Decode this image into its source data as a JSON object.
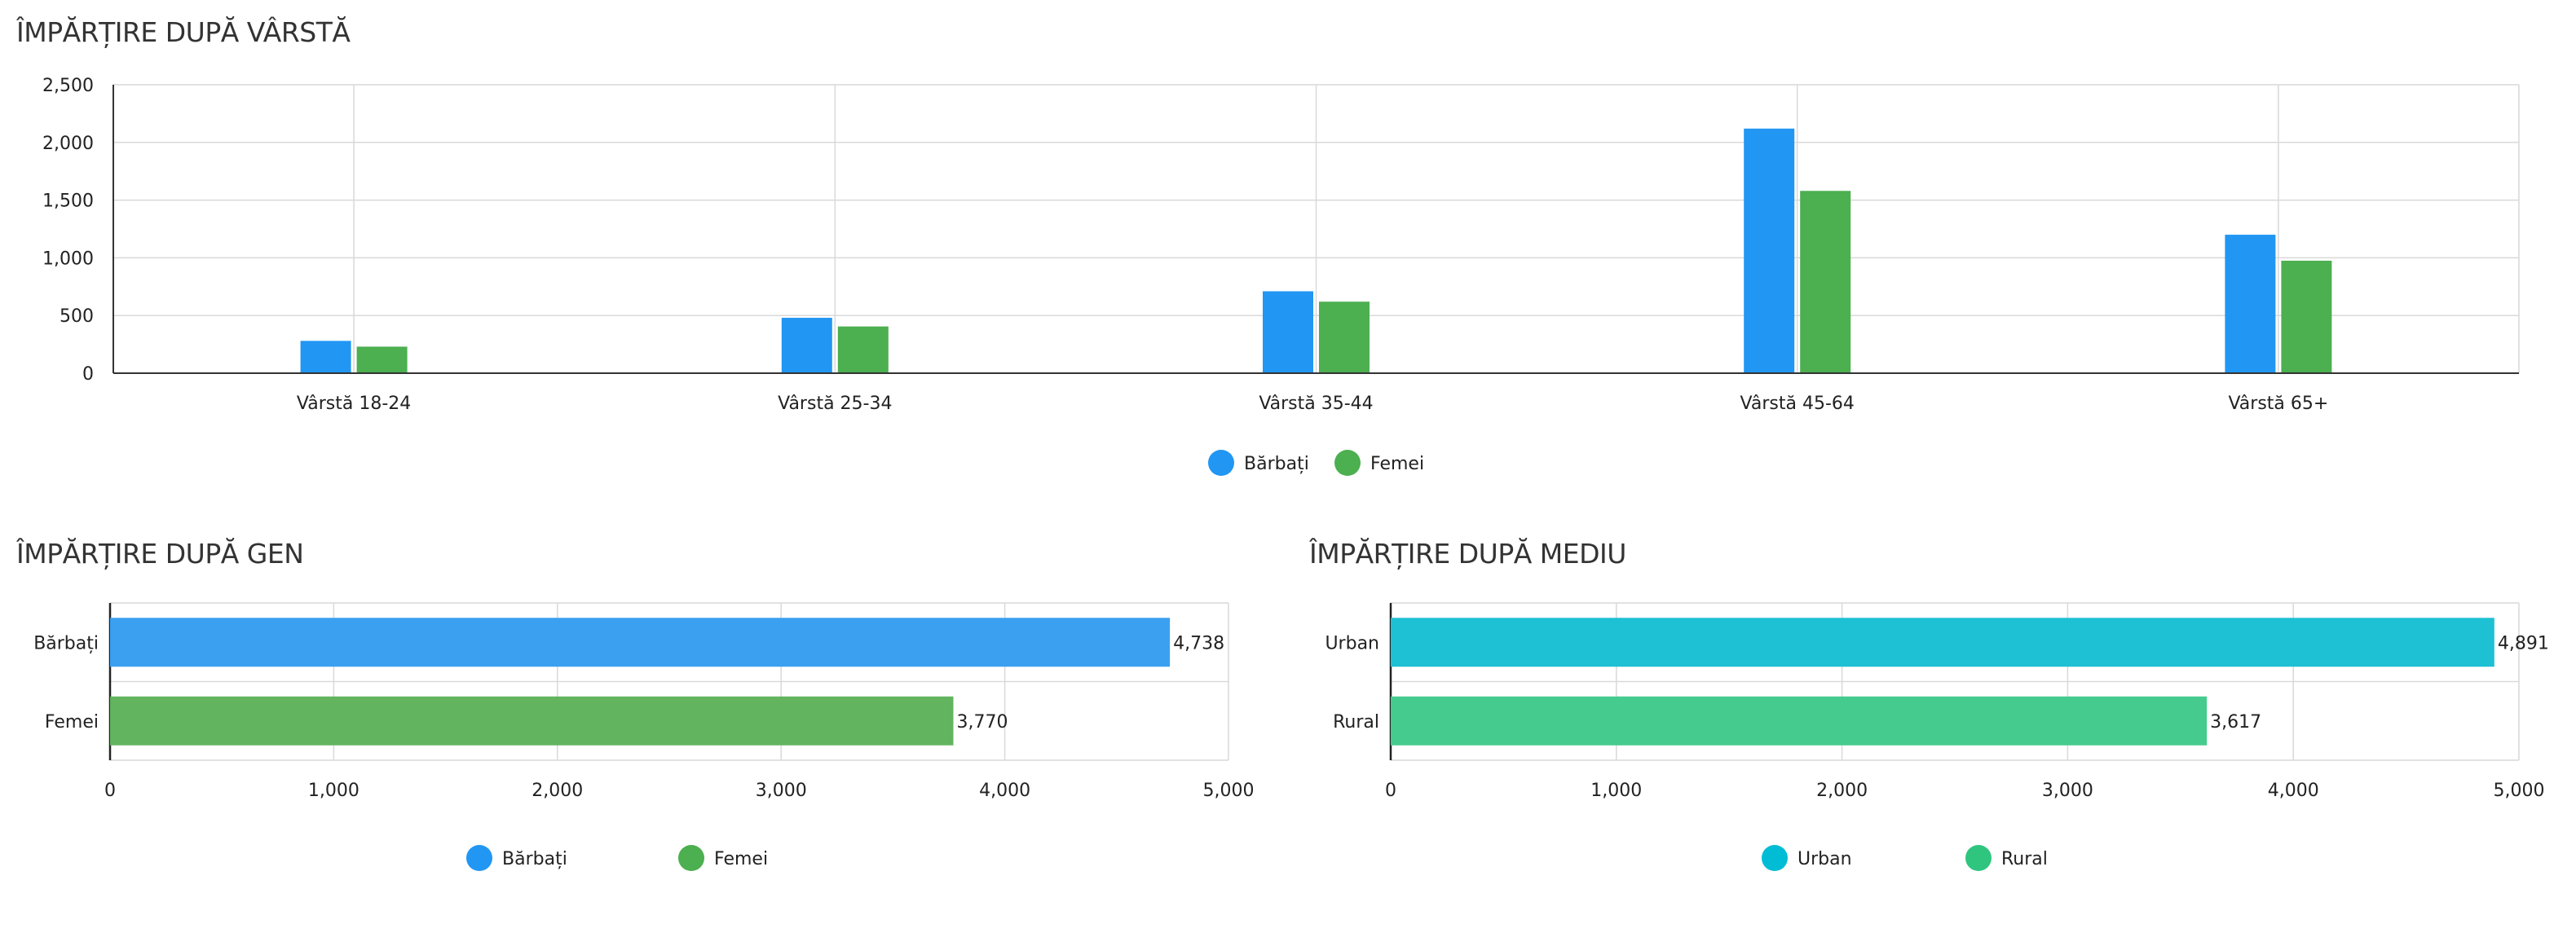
{
  "chart_data": [
    {
      "id": "age",
      "type": "bar",
      "title": "ÎMPĂRȚIRE DUPĂ VÂRSTĂ",
      "orientation": "vertical",
      "categories": [
        "Vârstă 18-24",
        "Vârstă 25-34",
        "Vârstă 35-44",
        "Vârstă 45-64",
        "Vârstă 65+"
      ],
      "series": [
        {
          "name": "Bărbați",
          "color": "#2196F3",
          "values": [
            280,
            480,
            710,
            2120,
            1200
          ]
        },
        {
          "name": "Femei",
          "color": "#4CAF50",
          "values": [
            230,
            405,
            620,
            1580,
            975
          ]
        }
      ],
      "ylim": [
        0,
        2500
      ],
      "yticks": [
        "0",
        "500",
        "1,000",
        "1,500",
        "2,000",
        "2,500"
      ],
      "grid": true,
      "legend": "bottom-center",
      "xlabel": "",
      "ylabel": ""
    },
    {
      "id": "gender",
      "type": "bar",
      "title": "ÎMPĂRȚIRE DUPĂ GEN",
      "orientation": "horizontal",
      "categories": [
        "Bărbați",
        "Femei"
      ],
      "values": [
        4738,
        3770
      ],
      "value_labels": [
        "4,738",
        "3,770"
      ],
      "colors": [
        "#3BA0F0",
        "#62B45E"
      ],
      "xlim": [
        0,
        5000
      ],
      "xticks": [
        "0",
        "1,000",
        "2,000",
        "3,000",
        "4,000",
        "5,000"
      ],
      "legend_entries": [
        {
          "name": "Bărbați",
          "color": "#2196F3"
        },
        {
          "name": "Femei",
          "color": "#4CAF50"
        }
      ],
      "grid": true,
      "legend": "bottom-center"
    },
    {
      "id": "area",
      "type": "bar",
      "title": "ÎMPĂRȚIRE DUPĂ MEDIU",
      "orientation": "horizontal",
      "categories": [
        "Urban",
        "Rural"
      ],
      "values": [
        4891,
        3617
      ],
      "value_labels": [
        "4,891",
        "3,617"
      ],
      "colors": [
        "#1EC0D4",
        "#45CB8D"
      ],
      "xlim": [
        0,
        5000
      ],
      "xticks": [
        "0",
        "1,000",
        "2,000",
        "3,000",
        "4,000",
        "5,000"
      ],
      "legend_entries": [
        {
          "name": "Urban",
          "color": "#00BCD4"
        },
        {
          "name": "Rural",
          "color": "#2FC57F"
        }
      ],
      "grid": true,
      "legend": "bottom-center"
    }
  ]
}
